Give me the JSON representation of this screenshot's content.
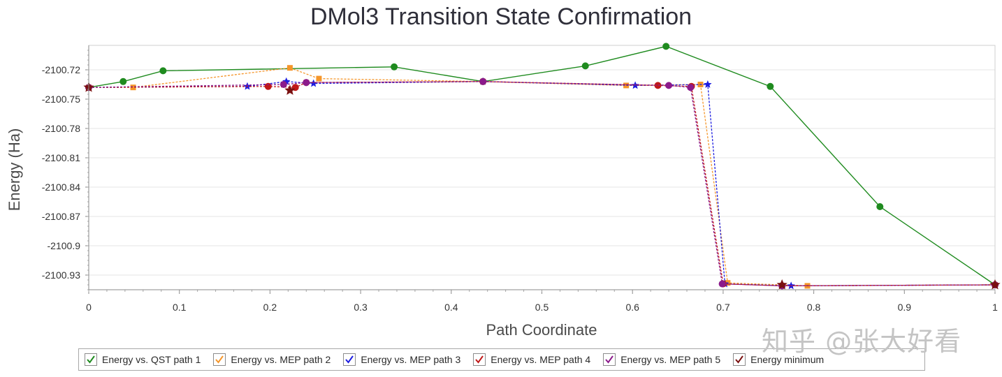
{
  "watermark": "知乎 @张大好看",
  "chart_data": {
    "type": "line",
    "title": "DMol3 Transition State Confirmation",
    "xlabel": "Path Coordinate",
    "ylabel": "Energy (Ha)",
    "xlim": [
      0,
      1
    ],
    "ylim": [
      -2100.945,
      -2100.695
    ],
    "x_ticks": [
      "0",
      "0.1",
      "0.2",
      "0.3",
      "0.4",
      "0.5",
      "0.6",
      "0.7",
      "0.8",
      "0.9",
      "1"
    ],
    "y_ticks": [
      "-2100.72",
      "-2100.75",
      "-2100.78",
      "-2100.81",
      "-2100.84",
      "-2100.87",
      "-2100.9",
      "-2100.93"
    ],
    "y_tick_values": [
      -2100.72,
      -2100.75,
      -2100.78,
      -2100.81,
      -2100.84,
      -2100.87,
      -2100.9,
      -2100.93
    ],
    "grid": true,
    "legend_position": "bottom",
    "series": [
      {
        "name": "Energy vs. QST path 1",
        "color": "#1f8b1f",
        "dashed": false,
        "marker": "circle",
        "points": [
          [
            0,
            -2100.738
          ],
          [
            0.038,
            -2100.732
          ],
          [
            0.082,
            -2100.721
          ],
          [
            0.337,
            -2100.717
          ],
          [
            0.435,
            -2100.732
          ],
          [
            0.548,
            -2100.716
          ],
          [
            0.637,
            -2100.696
          ],
          [
            0.752,
            -2100.737
          ],
          [
            0.873,
            -2100.86
          ],
          [
            1.0,
            -2100.94
          ]
        ]
      },
      {
        "name": "Energy vs. MEP path 2",
        "color": "#f5962a",
        "dashed": true,
        "marker": "square",
        "points": [
          [
            0,
            -2100.738
          ],
          [
            0.049,
            -2100.738
          ],
          [
            0.222,
            -2100.718
          ],
          [
            0.254,
            -2100.729
          ],
          [
            0.435,
            -2100.732
          ],
          [
            0.593,
            -2100.736
          ],
          [
            0.675,
            -2100.735
          ],
          [
            0.705,
            -2100.938
          ],
          [
            0.793,
            -2100.941
          ],
          [
            1.0,
            -2100.94
          ]
        ]
      },
      {
        "name": "Energy vs. MEP path 3",
        "color": "#1c1ce0",
        "dashed": true,
        "marker": "star",
        "points": [
          [
            0,
            -2100.738
          ],
          [
            0.175,
            -2100.737
          ],
          [
            0.218,
            -2100.732
          ],
          [
            0.248,
            -2100.734
          ],
          [
            0.435,
            -2100.732
          ],
          [
            0.603,
            -2100.736
          ],
          [
            0.683,
            -2100.735
          ],
          [
            0.702,
            -2100.939
          ],
          [
            0.775,
            -2100.941
          ],
          [
            1.0,
            -2100.94
          ]
        ]
      },
      {
        "name": "Energy vs. MEP path 4",
        "color": "#c01818",
        "dashed": true,
        "marker": "circle",
        "points": [
          [
            0,
            -2100.738
          ],
          [
            0.198,
            -2100.737
          ],
          [
            0.228,
            -2100.738
          ],
          [
            0.24,
            -2100.733
          ],
          [
            0.435,
            -2100.732
          ],
          [
            0.628,
            -2100.736
          ],
          [
            0.665,
            -2100.737
          ],
          [
            0.7,
            -2100.939
          ],
          [
            0.765,
            -2100.941
          ],
          [
            1.0,
            -2100.94
          ]
        ]
      },
      {
        "name": "Energy vs. MEP path 5",
        "color": "#8b1a8b",
        "dashed": true,
        "marker": "circle",
        "points": [
          [
            0,
            -2100.738
          ],
          [
            0.215,
            -2100.735
          ],
          [
            0.24,
            -2100.733
          ],
          [
            0.435,
            -2100.732
          ],
          [
            0.64,
            -2100.736
          ],
          [
            0.664,
            -2100.738
          ],
          [
            0.699,
            -2100.939
          ],
          [
            0.765,
            -2100.941
          ],
          [
            1.0,
            -2100.94
          ]
        ]
      },
      {
        "name": "Energy minimum",
        "color": "#7a1010",
        "dashed": false,
        "marker": "star",
        "line": false,
        "points": [
          [
            0,
            -2100.738
          ],
          [
            0.222,
            -2100.741
          ],
          [
            0.765,
            -2100.94
          ],
          [
            1.0,
            -2100.94
          ]
        ]
      }
    ]
  }
}
